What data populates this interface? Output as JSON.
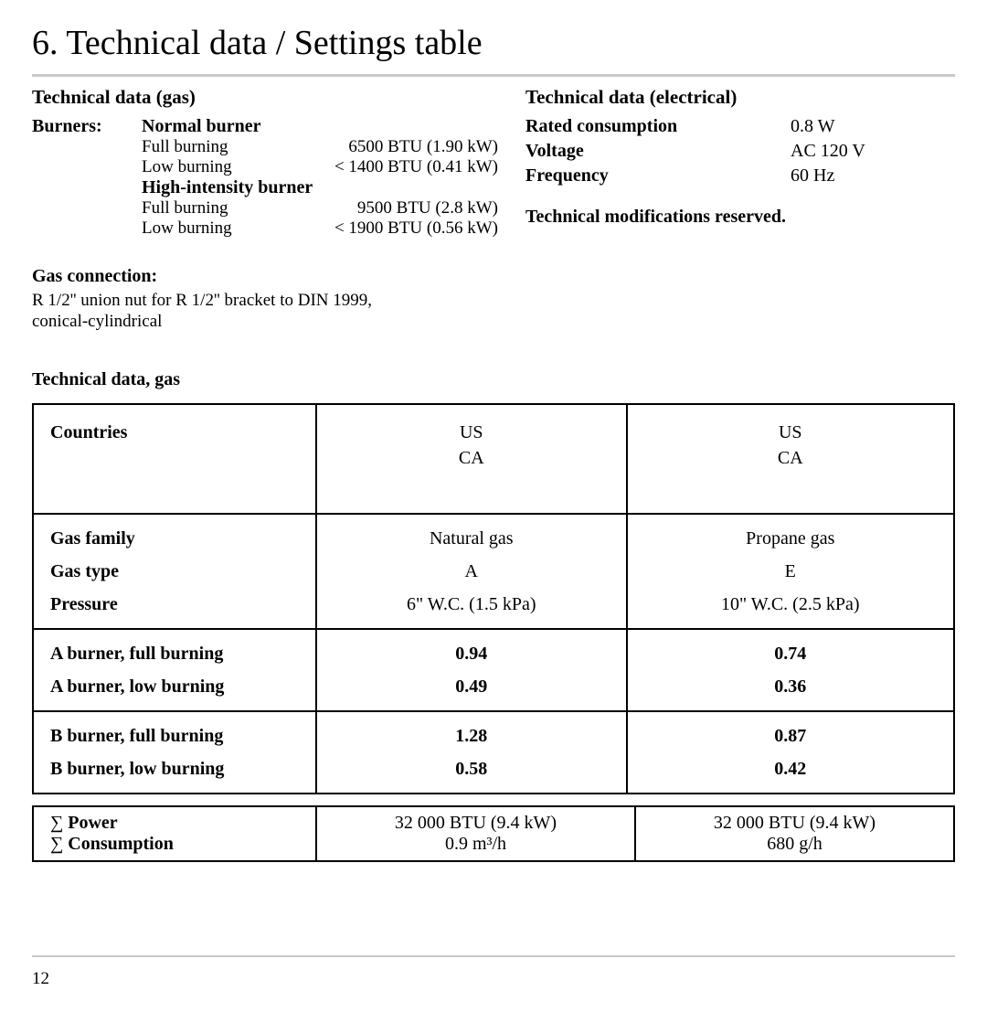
{
  "title": "6. Technical data / Settings table",
  "gas": {
    "heading": "Technical data (gas)",
    "burners_label": "Burners:",
    "normal": {
      "name": "Normal burner",
      "full_label": "Full burning",
      "full_value": "6500 BTU (1.90 kW)",
      "low_label": "Low burning",
      "low_value": "< 1400 BTU (0.41 kW)"
    },
    "high": {
      "name": "High-intensity burner",
      "full_label": "Full burning",
      "full_value": "9500 BTU (2.8 kW)",
      "low_label": "Low burning",
      "low_value": "< 1900 BTU (0.56 kW)"
    },
    "conn_title": "Gas connection:",
    "conn_body1": "R 1/2'' union nut for R 1/2'' bracket to DIN 1999,",
    "conn_body2": "conical-cylindrical"
  },
  "elec": {
    "heading": "Technical data (electrical)",
    "rows": [
      {
        "label": "Rated consumption",
        "value": "0.8 W"
      },
      {
        "label": "Voltage",
        "value": "AC 120 V"
      },
      {
        "label": "Frequency",
        "value": "60 Hz"
      }
    ],
    "mod_note": "Technical modifications reserved."
  },
  "table": {
    "title": "Technical data, gas",
    "head": {
      "col0": "Countries",
      "col1a": "US",
      "col1b": "CA",
      "col2a": "US",
      "col2b": "CA"
    },
    "gas_row": {
      "r1": "Gas family",
      "v1a": "Natural gas",
      "v1b": "Propane gas",
      "r2": "Gas type",
      "v2a": "A",
      "v2b": "E",
      "r3": "Pressure",
      "v3a": "6\" W.C. (1.5 kPa)",
      "v3b": "10\" W.C. (2.5 kPa)"
    },
    "a_burner": {
      "r1": "A burner, full burning",
      "v1a": "0.94",
      "v1b": "0.74",
      "r2": "A burner, low burning",
      "v2a": "0.49",
      "v2b": "0.36"
    },
    "b_burner": {
      "r1": "B burner, full burning",
      "v1a": "1.28",
      "v1b": "0.87",
      "r2": "B burner, low burning",
      "v2a": "0.58",
      "v2b": "0.42"
    },
    "summary": {
      "r1": "∑ Power",
      "v1a": "32 000 BTU (9.4 kW)",
      "v1b": "32 000 BTU (9.4 kW)",
      "r2": "∑ Consumption",
      "v2a": "0.9 m³/h",
      "v2b": "680 g/h"
    }
  },
  "page_num": "12"
}
